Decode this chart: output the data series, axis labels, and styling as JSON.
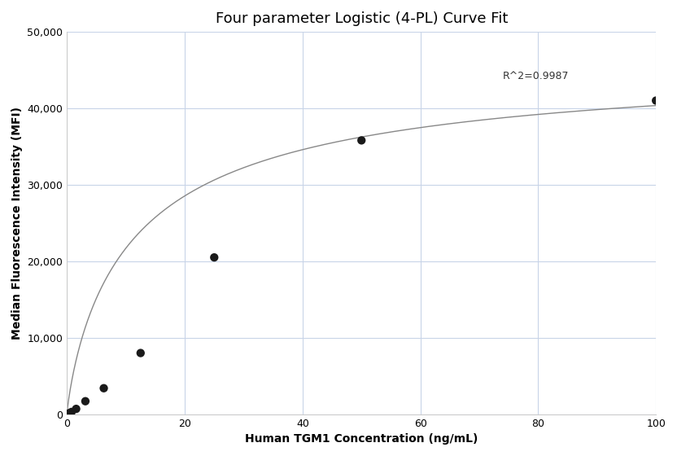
{
  "title": "Four parameter Logistic (4-PL) Curve Fit",
  "xlabel": "Human TGM1 Concentration (ng/mL)",
  "ylabel": "Median Fluorescence Intensity (MFI)",
  "scatter_x": [
    0.39,
    0.78,
    1.56,
    3.125,
    6.25,
    12.5,
    25.0,
    50.0,
    100.0
  ],
  "scatter_y": [
    150,
    300,
    700,
    1700,
    3400,
    8000,
    20500,
    35800,
    41000
  ],
  "r_squared": "R^2=0.9987",
  "r2_x": 74,
  "r2_y": 43500,
  "xlim": [
    0,
    100
  ],
  "ylim": [
    0,
    50000
  ],
  "xticks": [
    0,
    20,
    40,
    60,
    80,
    100
  ],
  "yticks": [
    0,
    10000,
    20000,
    30000,
    40000,
    50000
  ],
  "scatter_color": "#1a1a1a",
  "line_color": "#888888",
  "background_color": "#ffffff",
  "grid_color": "#c8d4e8",
  "title_fontsize": 13,
  "label_fontsize": 10,
  "tick_fontsize": 9,
  "4pl_A": 50,
  "4pl_B": 0.85,
  "4pl_C": 12.0,
  "4pl_D": 47000
}
